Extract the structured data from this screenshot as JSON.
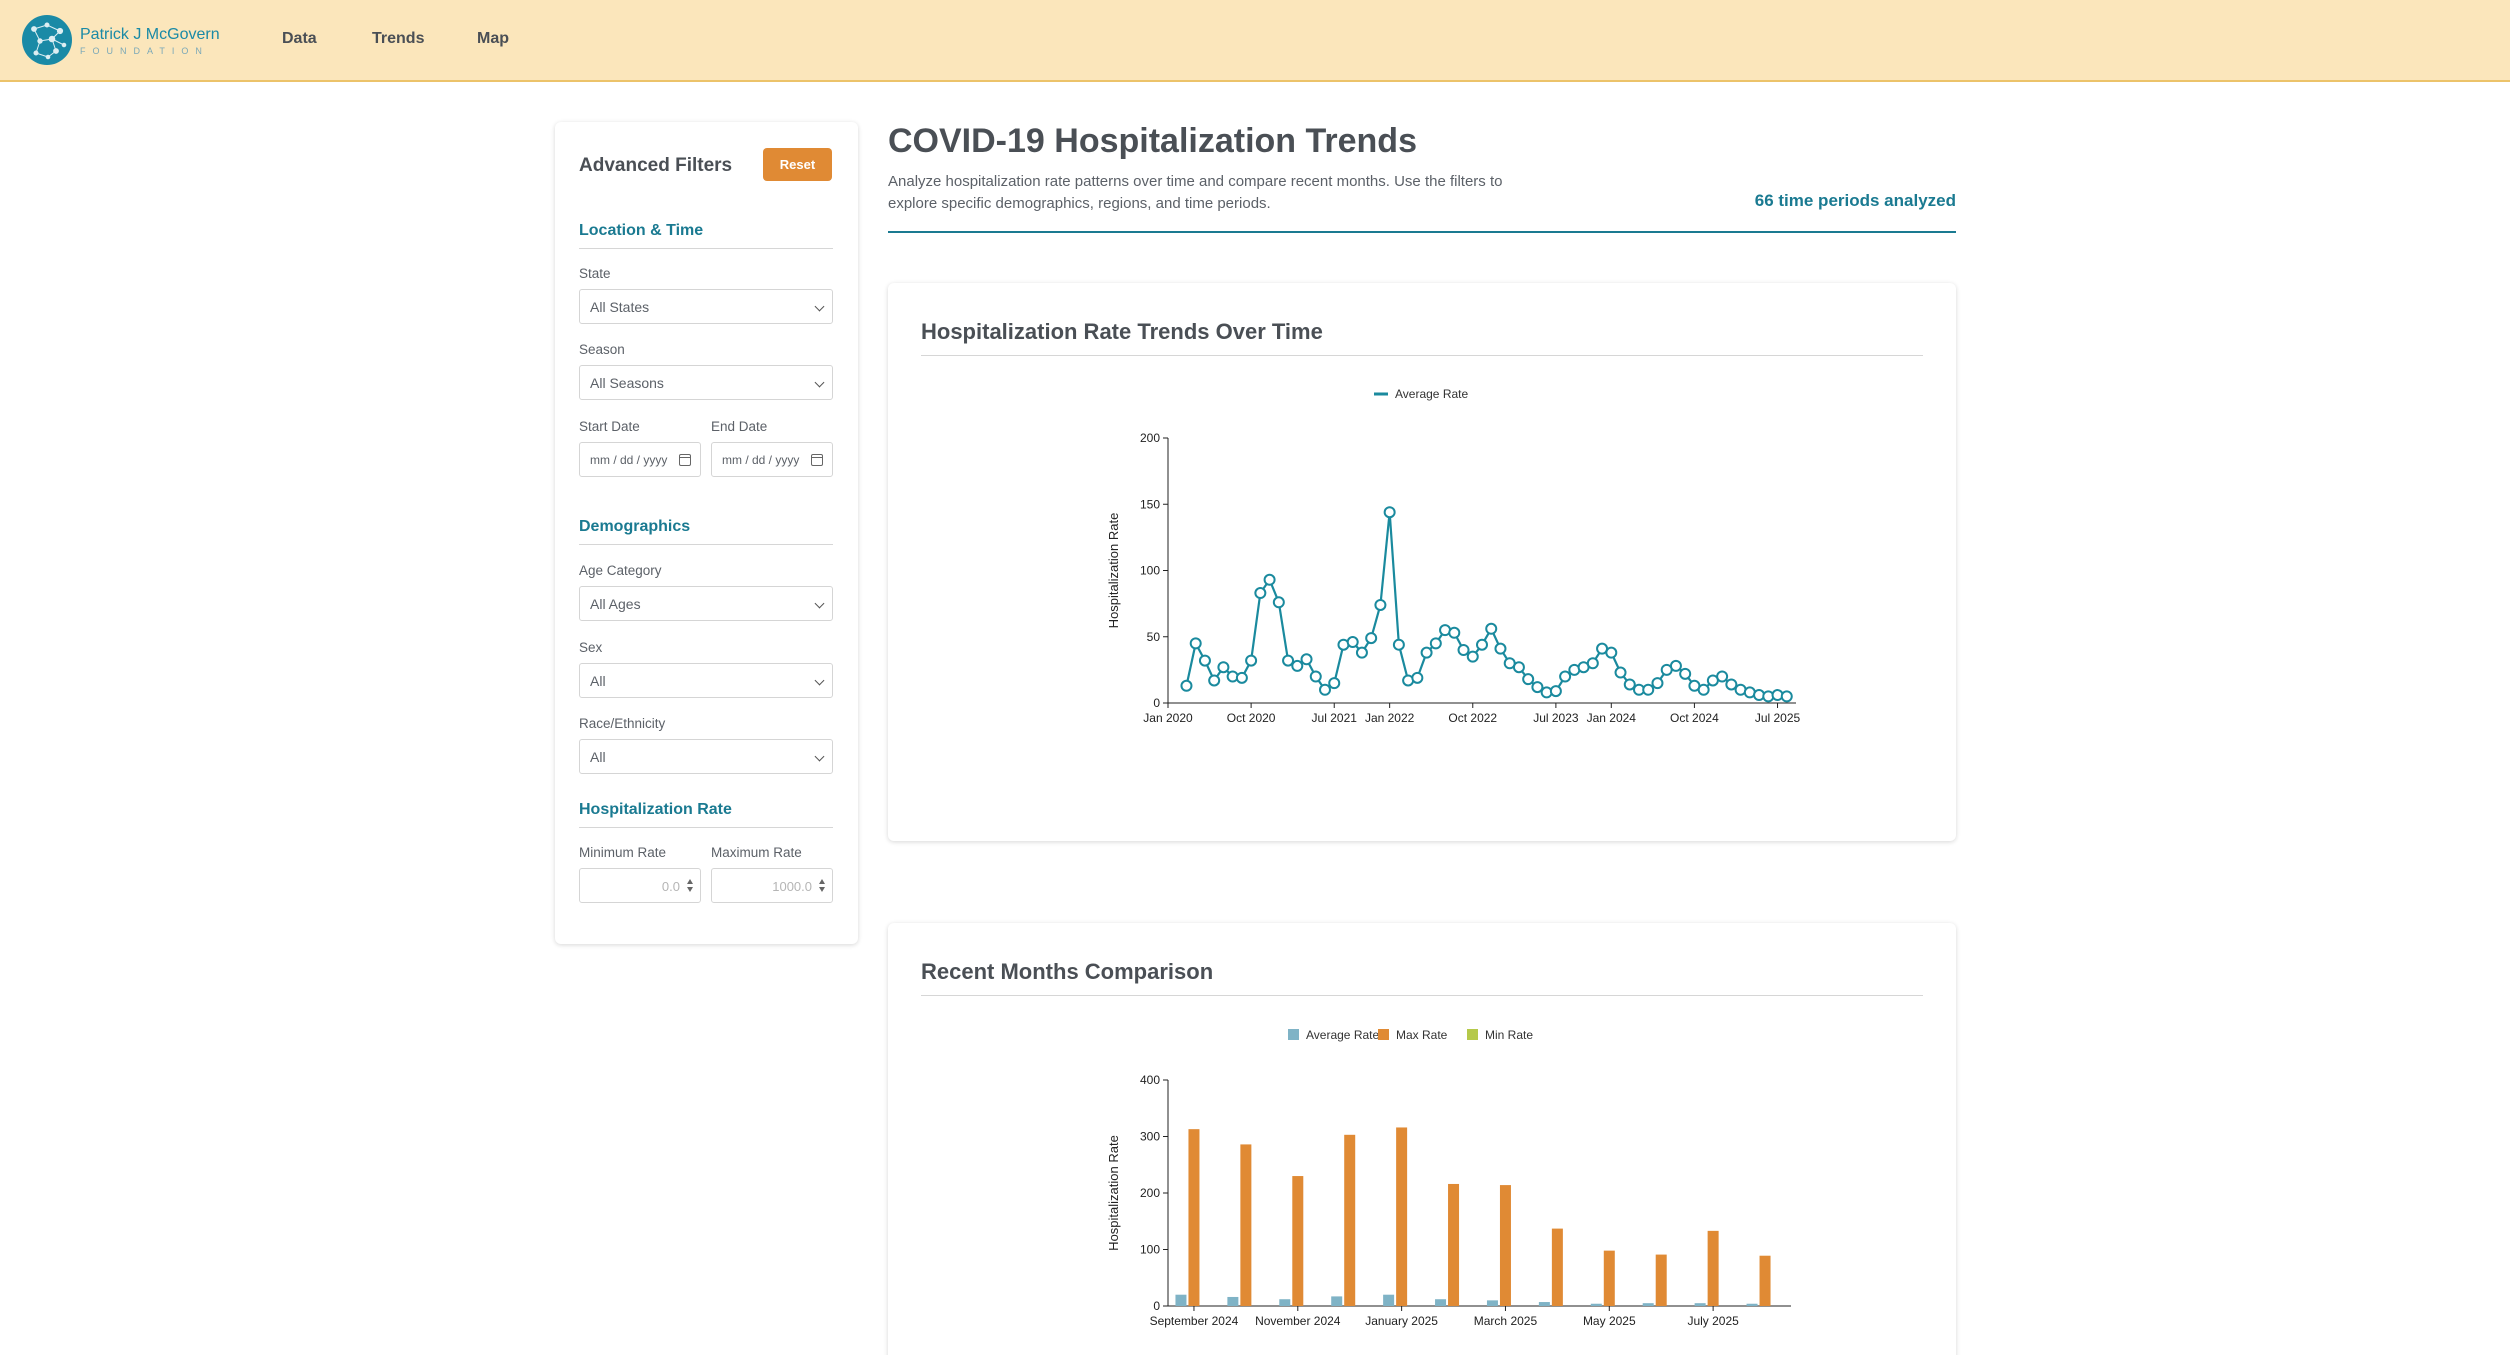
{
  "header": {
    "logo_line1": "Patrick J McGovern",
    "logo_line2": "FOUNDATION",
    "nav": [
      "Data",
      "Trends",
      "Map"
    ]
  },
  "filters": {
    "title": "Advanced Filters",
    "reset_label": "Reset",
    "location_section": "Location & Time",
    "state_label": "State",
    "state_value": "All States",
    "season_label": "Season",
    "season_value": "All Seasons",
    "start_date_label": "Start Date",
    "end_date_label": "End Date",
    "date_placeholder": "mm / dd / yyyy",
    "demographics_section": "Demographics",
    "age_label": "Age Category",
    "age_value": "All Ages",
    "sex_label": "Sex",
    "sex_value": "All",
    "race_label": "Race/Ethnicity",
    "race_value": "All",
    "rate_section": "Hospitalization Rate",
    "min_rate_label": "Minimum Rate",
    "min_rate_placeholder": "0.0",
    "max_rate_label": "Maximum Rate",
    "max_rate_placeholder": "1000.0"
  },
  "main": {
    "title": "COVID-19 Hospitalization Trends",
    "description": "Analyze hospitalization rate patterns over time and compare recent months. Use the filters to explore specific demographics, regions, and time periods.",
    "periods_text": "66 time periods analyzed"
  },
  "colors": {
    "accent": "#1a7a91",
    "line": "#1a8a9e",
    "reset": "#e08a34",
    "avg_bar": "#7fb3c6",
    "max_bar": "#e08a34",
    "min_bar": "#b5c94a",
    "header_bg": "#fbe6bb"
  },
  "chart_data": [
    {
      "type": "line",
      "title": "Hospitalization Rate Trends Over Time",
      "ylabel": "Hospitalization Rate",
      "legend": [
        "Average Rate"
      ],
      "legend_position": "top-center",
      "ylim": [
        0,
        200
      ],
      "y_ticks": [
        0,
        50,
        100,
        150,
        200
      ],
      "x_ticks": [
        "Jan 2020",
        "Oct 2020",
        "Jul 2021",
        "Jan 2022",
        "Oct 2022",
        "Jul 2023",
        "Jan 2024",
        "Oct 2024",
        "Jul 2025"
      ],
      "series": [
        {
          "name": "Average Rate",
          "x": [
            "2020-03",
            "2020-04",
            "2020-05",
            "2020-06",
            "2020-07",
            "2020-08",
            "2020-09",
            "2020-10",
            "2020-11",
            "2020-12",
            "2021-01",
            "2021-02",
            "2021-03",
            "2021-04",
            "2021-05",
            "2021-06",
            "2021-07",
            "2021-08",
            "2021-09",
            "2021-10",
            "2021-11",
            "2021-12",
            "2022-01",
            "2022-02",
            "2022-03",
            "2022-04",
            "2022-05",
            "2022-06",
            "2022-07",
            "2022-08",
            "2022-09",
            "2022-10",
            "2022-11",
            "2022-12",
            "2023-01",
            "2023-02",
            "2023-03",
            "2023-04",
            "2023-05",
            "2023-06",
            "2023-07",
            "2023-08",
            "2023-09",
            "2023-10",
            "2023-11",
            "2023-12",
            "2024-01",
            "2024-02",
            "2024-03",
            "2024-04",
            "2024-05",
            "2024-06",
            "2024-07",
            "2024-08",
            "2024-09",
            "2024-10",
            "2024-11",
            "2024-12",
            "2025-01",
            "2025-02",
            "2025-03",
            "2025-04",
            "2025-05",
            "2025-06",
            "2025-07",
            "2025-08"
          ],
          "values": [
            13,
            45,
            32,
            17,
            27,
            20,
            19,
            32,
            83,
            93,
            76,
            32,
            28,
            33,
            20,
            10,
            15,
            44,
            46,
            38,
            49,
            74,
            144,
            44,
            17,
            19,
            38,
            45,
            55,
            53,
            40,
            35,
            44,
            56,
            41,
            30,
            27,
            18,
            12,
            8,
            9,
            20,
            25,
            27,
            30,
            41,
            38,
            23,
            14,
            10,
            10,
            15,
            25,
            28,
            22,
            13,
            10,
            17,
            20,
            14,
            10,
            8,
            6,
            5,
            6,
            5
          ]
        }
      ]
    },
    {
      "type": "bar",
      "title": "Recent Months Comparison",
      "ylabel": "Hospitalization Rate",
      "legend": [
        "Average Rate",
        "Max Rate",
        "Min Rate"
      ],
      "legend_position": "top-center",
      "ylim": [
        0,
        400
      ],
      "y_ticks": [
        0,
        100,
        200,
        300,
        400
      ],
      "categories": [
        "September 2024",
        "October 2024",
        "November 2024",
        "December 2024",
        "January 2025",
        "February 2025",
        "March 2025",
        "April 2025",
        "May 2025",
        "June 2025",
        "July 2025",
        "August 2025"
      ],
      "x_tick_labels": [
        "September 2024",
        "November 2024",
        "January 2025",
        "March 2025",
        "May 2025",
        "July 2025"
      ],
      "series": [
        {
          "name": "Average Rate",
          "values": [
            20,
            16,
            12,
            17,
            20,
            12,
            10,
            7,
            4,
            5,
            5,
            4
          ]
        },
        {
          "name": "Max Rate",
          "values": [
            313,
            286,
            230,
            303,
            316,
            216,
            214,
            137,
            98,
            91,
            133,
            89
          ]
        },
        {
          "name": "Min Rate",
          "values": [
            0,
            0,
            0,
            0,
            0,
            0,
            0,
            0,
            0,
            0,
            0,
            0
          ]
        }
      ]
    }
  ]
}
